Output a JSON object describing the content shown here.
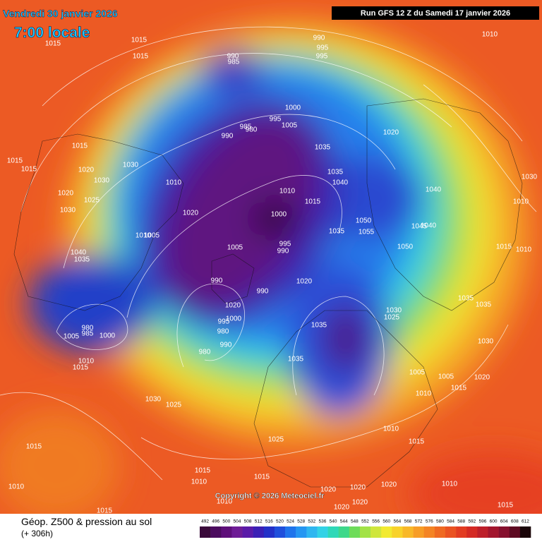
{
  "header": {
    "date": "Vendredi 30 janvier 2026",
    "time": "7:00 locale",
    "run": "Run GFS 12 Z du Samedi 17 janvier 2026"
  },
  "copyright": "Copyright © 2026 Meteociel.fr",
  "footer": {
    "title": "Géop. Z500 & pression au sol",
    "lead": "(+ 306h)"
  },
  "scale": {
    "labels": [
      492,
      496,
      500,
      504,
      508,
      512,
      516,
      520,
      524,
      528,
      532,
      536,
      540,
      544,
      548,
      552,
      556,
      560,
      564,
      568,
      572,
      576,
      580,
      584,
      588,
      592,
      596,
      600,
      604,
      608,
      612
    ],
    "colors": [
      "#3a0a3a",
      "#4b0c5e",
      "#5e0f7a",
      "#6e1c96",
      "#5a1aa8",
      "#3b1fb5",
      "#2330c8",
      "#1f4fdc",
      "#1f74ec",
      "#2596f2",
      "#2fb6f0",
      "#33d2e6",
      "#2fd8b8",
      "#3ed88a",
      "#6edc5a",
      "#a2e246",
      "#cfe63c",
      "#f2ea30",
      "#f8d22a",
      "#f8b828",
      "#f79d26",
      "#f48424",
      "#ef6a22",
      "#ea5322",
      "#e23c22",
      "#d42a24",
      "#bd1f2a",
      "#a3162e",
      "#86102e",
      "#5e0a22",
      "#1a0508"
    ]
  },
  "isobars": [
    1015,
    1015,
    1015,
    990,
    995,
    995,
    990,
    985,
    1010,
    1000,
    995,
    985,
    980,
    1005,
    990,
    1020,
    1015,
    1015,
    1015,
    1020,
    1030,
    1035,
    1035,
    1040,
    1010,
    1030,
    1020,
    1025,
    1030,
    1010,
    1015,
    1040,
    1030,
    1010,
    1020,
    1000,
    1050,
    1055,
    1045,
    1040,
    1035,
    1010,
    1005,
    1005,
    995,
    990,
    1050,
    1015,
    1010,
    1040,
    1035,
    1020,
    990,
    990,
    1035,
    1035,
    1020,
    995,
    1000,
    980,
    990,
    980,
    1030,
    1025,
    1035,
    980,
    985,
    1000,
    1005,
    1030,
    1010,
    1015,
    1035,
    1005,
    1005,
    1020,
    1015,
    1010,
    1030,
    1025,
    1010,
    1015,
    1025,
    1015,
    1015,
    1015,
    1010,
    1010,
    1020,
    1020,
    1020,
    1010,
    1010,
    1020,
    1020,
    1015,
    1015
  ]
}
